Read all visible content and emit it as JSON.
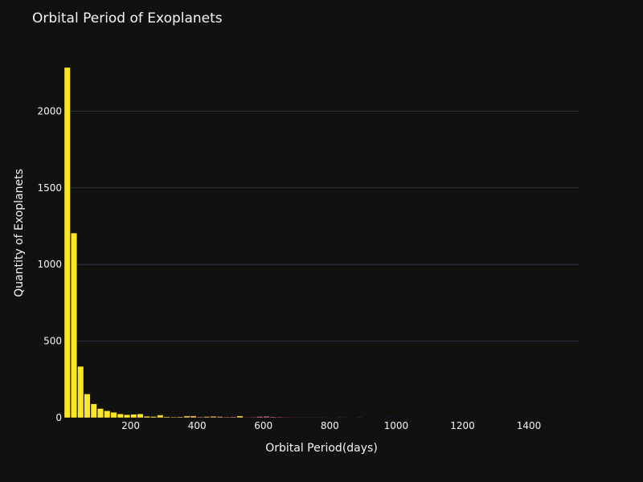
{
  "chart_data": {
    "type": "bar",
    "title": "Orbital Period of Exoplanets",
    "xlabel": "Orbital Period(days)",
    "ylabel": "Quantity of Exoplanets",
    "xlim": [
      0,
      1550
    ],
    "ylim": [
      0,
      2285
    ],
    "xticks": [
      200,
      400,
      600,
      800,
      1000,
      1200,
      1400
    ],
    "yticks": [
      0,
      500,
      1000,
      1500,
      2000
    ],
    "grid": true,
    "bin_width": 20,
    "bins_start": [
      0,
      20,
      40,
      60,
      80,
      100,
      120,
      140,
      160,
      180,
      200,
      220,
      240,
      260,
      280,
      300,
      320,
      340,
      360,
      380,
      400,
      420,
      440,
      460,
      480,
      500,
      520,
      540,
      560,
      580,
      600,
      620,
      640,
      660,
      680,
      700,
      720,
      740,
      760,
      780,
      800,
      820,
      840,
      860,
      880,
      900,
      920,
      940,
      960,
      980,
      1000,
      1020,
      1040,
      1060,
      1080,
      1100,
      1120,
      1140,
      1160,
      1180,
      1200,
      1220,
      1240,
      1260,
      1280,
      1300,
      1320,
      1340,
      1360,
      1380,
      1400,
      1420,
      1440,
      1460,
      1480,
      1500,
      1520
    ],
    "values": [
      2285,
      1205,
      335,
      155,
      90,
      60,
      45,
      35,
      25,
      20,
      22,
      25,
      10,
      8,
      18,
      6,
      5,
      6,
      12,
      12,
      5,
      8,
      10,
      8,
      5,
      6,
      12,
      3,
      4,
      8,
      10,
      6,
      5,
      4,
      3,
      3,
      3,
      3,
      3,
      3,
      2,
      3,
      3,
      2,
      3,
      2,
      2,
      2,
      3,
      3,
      3,
      2,
      2,
      2,
      2,
      2,
      2,
      2,
      2,
      2,
      2,
      2,
      2,
      2,
      2,
      2,
      2,
      2,
      1,
      1,
      1,
      1,
      1,
      1,
      1,
      1,
      1
    ],
    "colors": [
      "#fde724",
      "#fde724",
      "#fde724",
      "#fde724",
      "#fde724",
      "#fde724",
      "#fde724",
      "#fde724",
      "#fde724",
      "#fde724",
      "#fde724",
      "#fde724",
      "#f2d63a",
      "#f2d63a",
      "#f2d63a",
      "#e8c34e",
      "#e8c34e",
      "#e0b25a",
      "#e0b25a",
      "#e0b25a",
      "#d8a060",
      "#d8a060",
      "#d8a060",
      "#d08f66",
      "#d08f66",
      "#c97e6c",
      "#e6c84a",
      "#c97e6c",
      "#c06f72",
      "#c06f72",
      "#b86078",
      "#b86078",
      "#b0527c",
      "#a84680",
      "#a04084",
      "#983a88",
      "#90348a",
      "#8a2f8c",
      "#842a8e",
      "#7e2690",
      "#782290",
      "#9c3a86",
      "#722090",
      "#6e1e90",
      "#9c3a86",
      "#681c8e",
      "#641a8c",
      "#60188a",
      "#5c1688",
      "#581486",
      "#541284",
      "#501082",
      "#4c0f80",
      "#480e7e",
      "#440d7c",
      "#400c7a",
      "#3c0b78",
      "#380a76",
      "#340974",
      "#300872",
      "#9c3a86",
      "#2c0770",
      "#28066e",
      "#24056c",
      "#9c3a86",
      "#20046a",
      "#1e0468",
      "#1c0466",
      "#2a3a6a",
      "#2c4470",
      "#2e4e76",
      "#30587c",
      "#326282",
      "#346c88",
      "#36768e",
      "#388094",
      "#3a8a9a"
    ]
  }
}
